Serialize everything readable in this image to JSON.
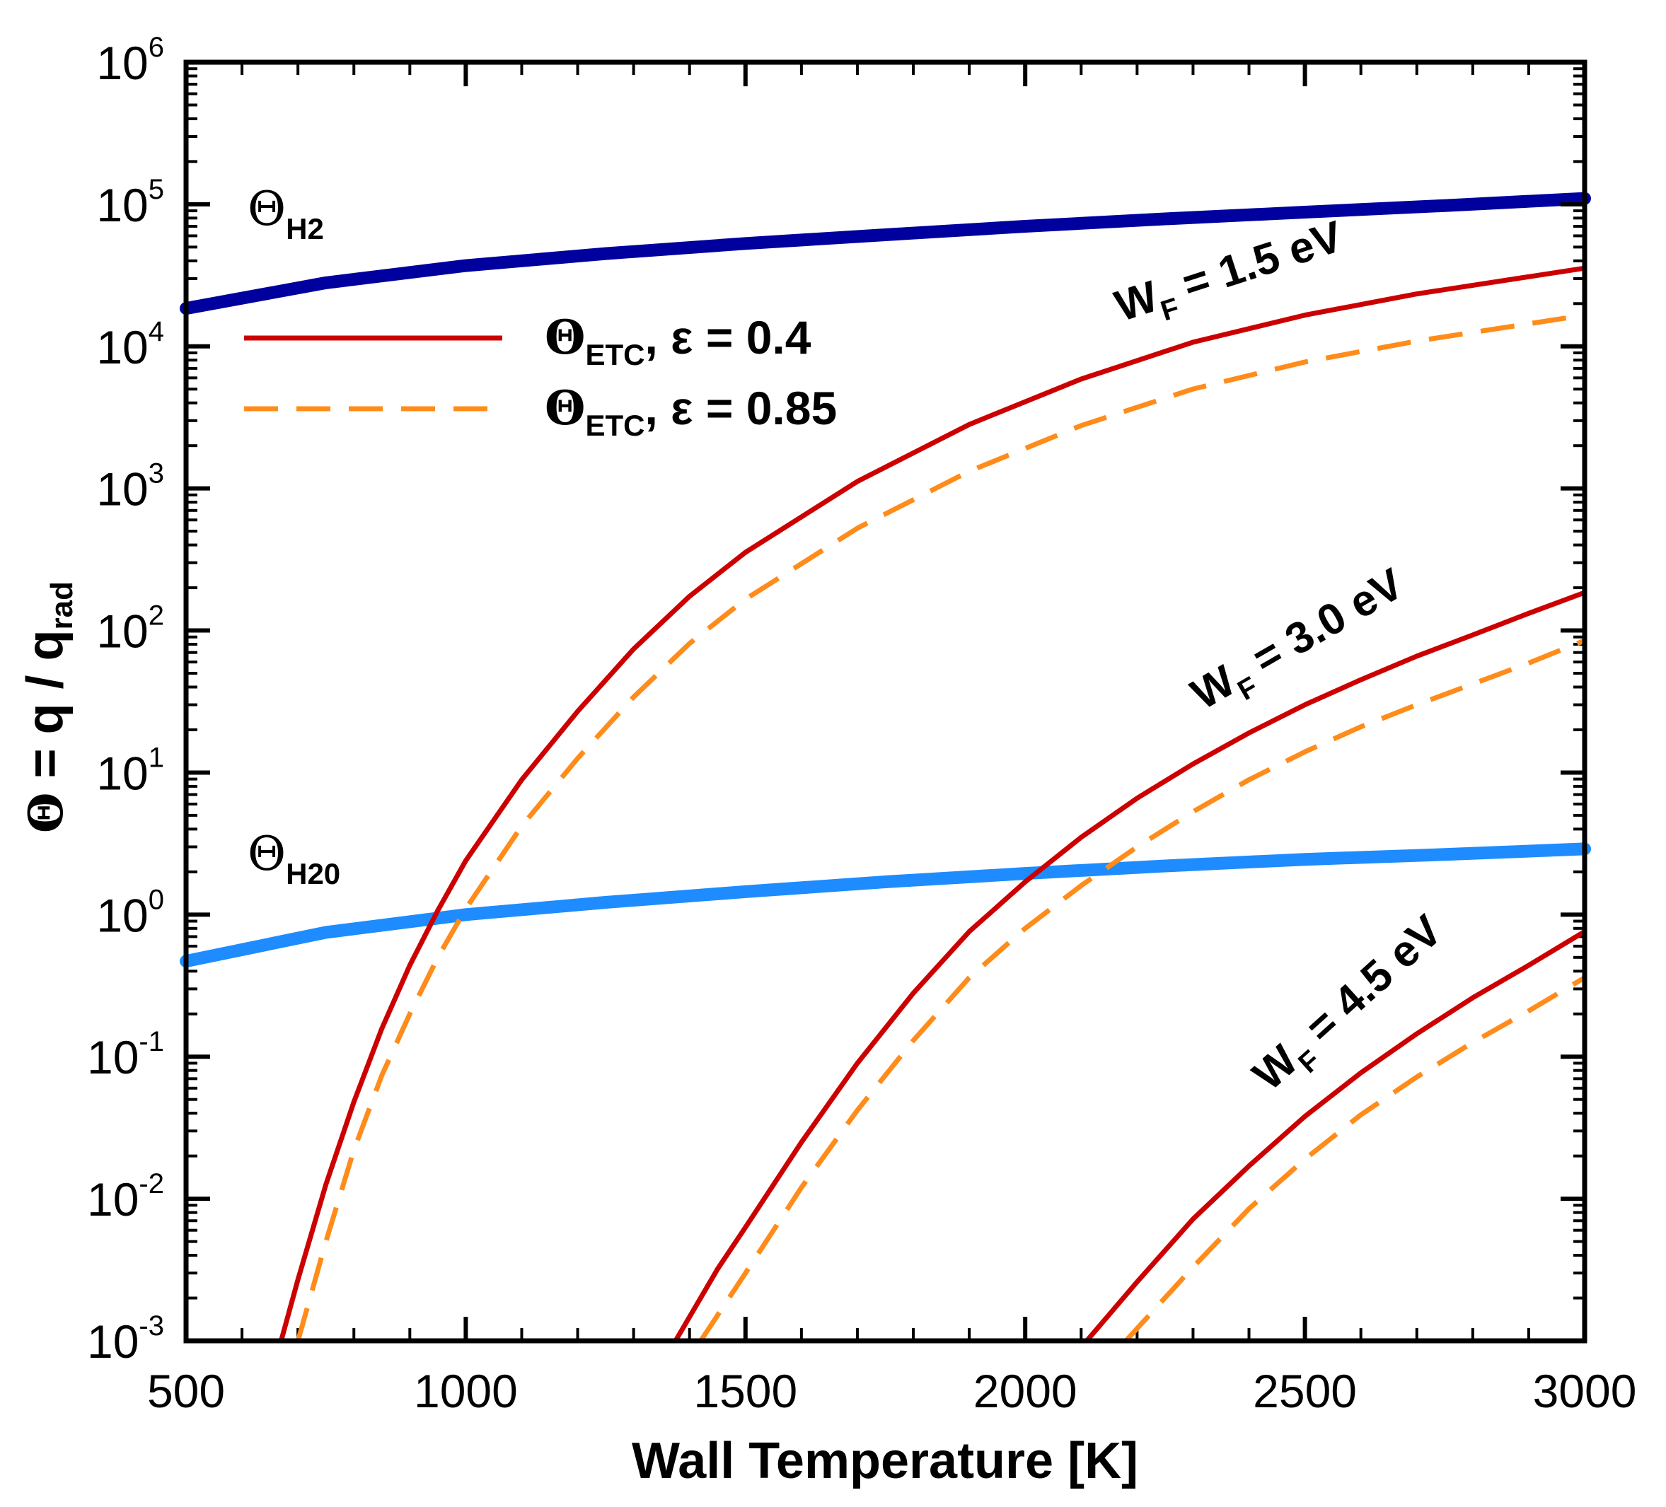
{
  "chart_data": {
    "type": "line",
    "xlabel": "Wall Temperature [K]",
    "ylabel": {
      "theta": "Θ",
      "main": " = q / q",
      "sub": "rad"
    },
    "xlim": [
      500,
      3000
    ],
    "ylim_log10": [
      -3,
      6
    ],
    "yscale": "log",
    "xticks": [
      500,
      1000,
      1500,
      2000,
      2500,
      3000
    ],
    "xtick_labels": [
      "500",
      "1000",
      "1500",
      "2000",
      "2500",
      "3000"
    ],
    "yticks": [
      {
        "base": "10",
        "exp": "-3",
        "log": -3
      },
      {
        "base": "10",
        "exp": "-2",
        "log": -2
      },
      {
        "base": "10",
        "exp": "-1",
        "log": -1
      },
      {
        "base": "10",
        "exp": "0",
        "log": 0
      },
      {
        "base": "10",
        "exp": "1",
        "log": 1
      },
      {
        "base": "10",
        "exp": "2",
        "log": 2
      },
      {
        "base": "10",
        "exp": "3",
        "log": 3
      },
      {
        "base": "10",
        "exp": "4",
        "log": 4
      },
      {
        "base": "10",
        "exp": "5",
        "log": 5
      },
      {
        "base": "10",
        "exp": "6",
        "log": 6
      }
    ],
    "series": [
      {
        "name": "Θ_H2",
        "style": "thick-solid",
        "color": "#00009E",
        "x": [
          500,
          750,
          1000,
          1250,
          1500,
          1750,
          2000,
          2250,
          2500,
          2750,
          3000
        ],
        "y": [
          18500,
          28000,
          37000,
          45000,
          53000,
          61000,
          70000,
          79000,
          88000,
          98000,
          110000
        ]
      },
      {
        "name": "Θ_H2O",
        "style": "thick-solid",
        "color": "#1E8CFF",
        "x": [
          500,
          750,
          1000,
          1250,
          1500,
          1750,
          2000,
          2250,
          2500,
          2750,
          3000
        ],
        "y": [
          0.47,
          0.75,
          1.0,
          1.22,
          1.45,
          1.7,
          1.95,
          2.2,
          2.45,
          2.65,
          2.9
        ]
      },
      {
        "name": "Θ_ETC, ε = 0.4, W_F = 1.5 eV",
        "style": "solid",
        "color": "#CC0000",
        "x": [
          670,
          700,
          750,
          800,
          850,
          900,
          950,
          1000,
          1100,
          1200,
          1300,
          1400,
          1500,
          1700,
          1900,
          2100,
          2300,
          2500,
          2700,
          3000
        ],
        "y": [
          0.001,
          0.0027,
          0.0126,
          0.048,
          0.158,
          0.44,
          1.07,
          2.4,
          8.9,
          27,
          74,
          174,
          355,
          1120,
          2820,
          5890,
          10700,
          16600,
          23400,
          35500
        ]
      },
      {
        "name": "Θ_ETC, ε = 0.85, W_F = 1.5 eV",
        "style": "dashed",
        "color": "#FF8C1A",
        "x": [
          700,
          750,
          800,
          850,
          900,
          950,
          1000,
          1100,
          1200,
          1300,
          1400,
          1500,
          1700,
          1900,
          2100,
          2300,
          2500,
          2700,
          3000
        ],
        "y": [
          0.001,
          0.005,
          0.022,
          0.074,
          0.2,
          0.5,
          1.1,
          4.2,
          12.6,
          34,
          81,
          166,
          525,
          1320,
          2770,
          5010,
          7760,
          10900,
          16600
        ]
      },
      {
        "name": "Θ_ETC, ε = 0.4, W_F = 3.0 eV",
        "style": "solid",
        "color": "#CC0000",
        "x": [
          1375,
          1450,
          1500,
          1600,
          1700,
          1800,
          1900,
          2000,
          2100,
          2200,
          2300,
          2400,
          2500,
          2600,
          2700,
          2800,
          2900,
          3000
        ],
        "y": [
          0.001,
          0.0032,
          0.0063,
          0.025,
          0.09,
          0.28,
          0.76,
          1.7,
          3.5,
          6.6,
          11.5,
          19,
          30,
          45,
          66,
          93,
          132,
          185
        ]
      },
      {
        "name": "Θ_ETC, ε = 0.85, W_F = 3.0 eV",
        "style": "dashed",
        "color": "#FF8C1A",
        "x": [
          1420,
          1500,
          1600,
          1700,
          1800,
          1900,
          2000,
          2100,
          2200,
          2300,
          2400,
          2500,
          2600,
          2700,
          2800,
          2900,
          3000
        ],
        "y": [
          0.001,
          0.003,
          0.012,
          0.042,
          0.13,
          0.36,
          0.8,
          1.6,
          3.0,
          5.3,
          8.9,
          14,
          21,
          30,
          42,
          59,
          85
        ]
      },
      {
        "name": "Θ_ETC, ε = 0.4, W_F = 4.5 eV",
        "style": "solid",
        "color": "#CC0000",
        "x": [
          2110,
          2200,
          2300,
          2400,
          2500,
          2600,
          2700,
          2800,
          2900,
          3000
        ],
        "y": [
          0.001,
          0.0026,
          0.0072,
          0.017,
          0.038,
          0.077,
          0.145,
          0.26,
          0.44,
          0.76
        ]
      },
      {
        "name": "Θ_ETC, ε = 0.85, W_F = 4.5 eV",
        "style": "dashed",
        "color": "#FF8C1A",
        "x": [
          2180,
          2300,
          2400,
          2500,
          2600,
          2700,
          2800,
          2900,
          3000
        ],
        "y": [
          0.001,
          0.0033,
          0.0085,
          0.019,
          0.039,
          0.072,
          0.126,
          0.21,
          0.36
        ]
      }
    ],
    "legend": {
      "placement": "upper-left",
      "entries": [
        {
          "theta": "Θ",
          "sub": "ETC",
          "rest": ", ε = 0.4",
          "style": "solid",
          "color": "#CC0000"
        },
        {
          "theta": "Θ",
          "sub": "ETC",
          "rest": ", ε = 0.85",
          "style": "dashed",
          "color": "#FF8C1A"
        }
      ]
    },
    "annotations": [
      {
        "main": "W",
        "sub": "F",
        "rest": " = 1.5 eV",
        "x": 2500,
        "y_log10": 4.25,
        "rotate": -18
      },
      {
        "main": "W",
        "sub": "F",
        "rest": " = 3.0 eV",
        "x": 2640,
        "y_log10": 1.2,
        "rotate": -30
      },
      {
        "main": "W",
        "sub": "F",
        "rest": " = 4.5 eV",
        "x": 2720,
        "y_log10": -1.55,
        "rotate": -42
      }
    ],
    "curve_labels": [
      {
        "theta": "Θ",
        "sub": "H2",
        "x": 570,
        "y_log10": 4.8
      },
      {
        "theta": "Θ",
        "sub": "H20",
        "x": 570,
        "y_log10": 0.35
      }
    ]
  }
}
